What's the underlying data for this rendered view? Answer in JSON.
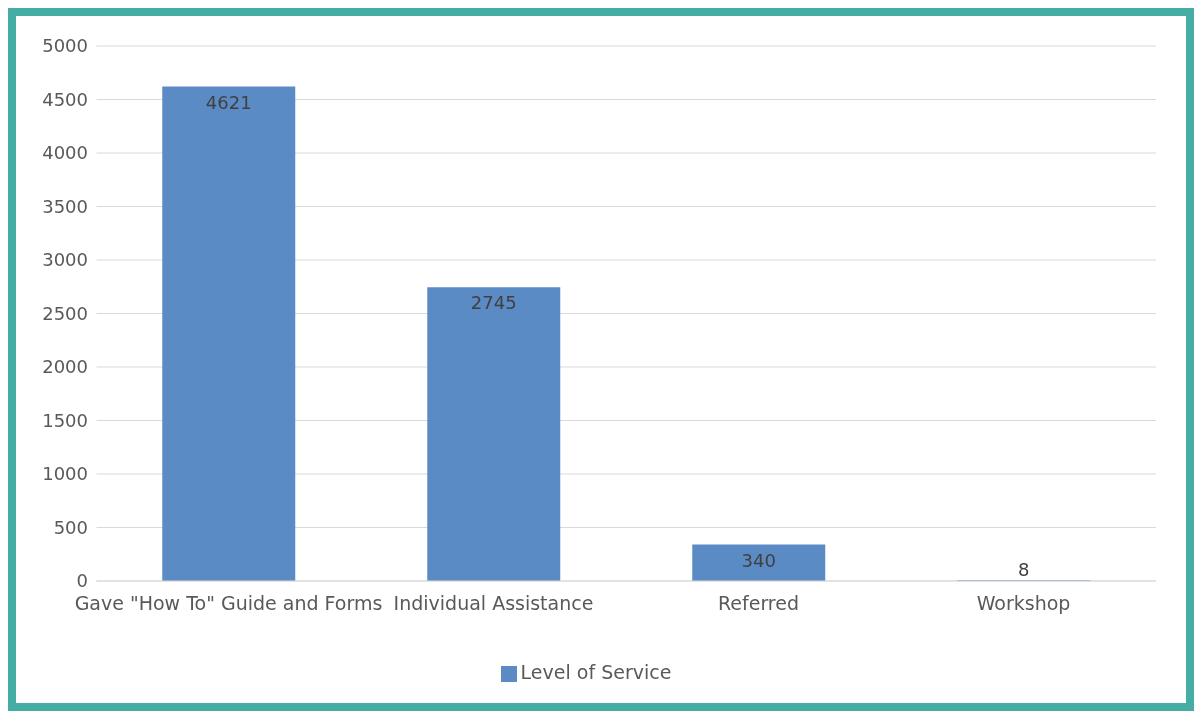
{
  "chart_data": {
    "type": "bar",
    "categories": [
      "Gave \"How To\" Guide and Forms",
      "Individual Assistance",
      "Referred",
      "Workshop"
    ],
    "series": [
      {
        "name": "Level of Service",
        "color": "#5b8bc5",
        "values": [
          4621,
          2745,
          340,
          8
        ]
      }
    ],
    "ylim": [
      0,
      5000
    ],
    "yticks": [
      0,
      500,
      1000,
      1500,
      2000,
      2500,
      3000,
      3500,
      4000,
      4500,
      5000
    ],
    "grid": "y",
    "legend": "bottom",
    "data_labels": true
  }
}
